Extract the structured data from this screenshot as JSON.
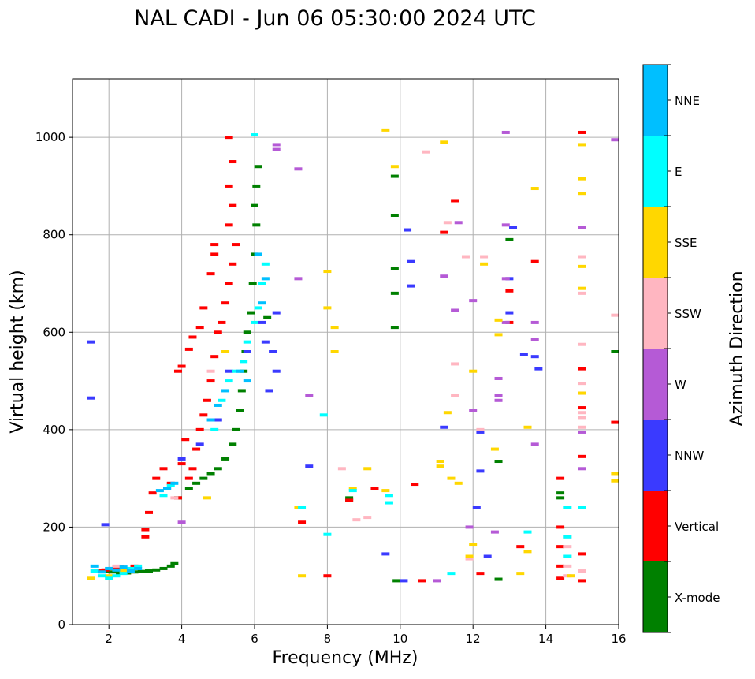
{
  "chart_data": {
    "type": "scatter",
    "title": "NAL CADI - Jun 06 05:30:00 2024 UTC",
    "xlabel": "Frequency (MHz)",
    "ylabel": "Virtual height (km)",
    "xlim": [
      1,
      16
    ],
    "ylim": [
      0,
      1120
    ],
    "xticks": [
      2,
      4,
      6,
      8,
      10,
      12,
      14,
      16
    ],
    "yticks": [
      0,
      200,
      400,
      600,
      800,
      1000
    ],
    "grid": true,
    "colorbar": {
      "label": "Azimuth Direction",
      "categories": [
        "X-mode",
        "Vertical",
        "NNW",
        "W",
        "SSW",
        "SSE",
        "E",
        "NNE"
      ],
      "colors": [
        "#008000",
        "#ff0000",
        "#3a3aff",
        "#b55ad6",
        "#ffb6c1",
        "#ffd700",
        "#00ffff",
        "#00bfff"
      ]
    },
    "series": [
      {
        "name": "X-mode",
        "points": [
          [
            1.9,
            110
          ],
          [
            2.1,
            108
          ],
          [
            2.3,
            106
          ],
          [
            2.5,
            106
          ],
          [
            2.7,
            108
          ],
          [
            2.9,
            109
          ],
          [
            3.1,
            110
          ],
          [
            3.3,
            112
          ],
          [
            3.5,
            115
          ],
          [
            3.7,
            120
          ],
          [
            3.8,
            125
          ],
          [
            3.9,
            260
          ],
          [
            4.2,
            280
          ],
          [
            4.4,
            290
          ],
          [
            4.6,
            300
          ],
          [
            4.8,
            310
          ],
          [
            5.0,
            320
          ],
          [
            5.2,
            340
          ],
          [
            5.4,
            370
          ],
          [
            5.5,
            400
          ],
          [
            5.6,
            440
          ],
          [
            5.65,
            480
          ],
          [
            5.7,
            520
          ],
          [
            5.75,
            560
          ],
          [
            5.8,
            600
          ],
          [
            5.9,
            640
          ],
          [
            5.95,
            700
          ],
          [
            6.0,
            760
          ],
          [
            6.05,
            820
          ],
          [
            6.0,
            860
          ],
          [
            6.05,
            900
          ],
          [
            6.1,
            940
          ],
          [
            6.35,
            630
          ],
          [
            9.85,
            610
          ],
          [
            9.85,
            680
          ],
          [
            9.85,
            730
          ],
          [
            9.85,
            840
          ],
          [
            9.85,
            920
          ],
          [
            8.6,
            255
          ],
          [
            8.6,
            260
          ],
          [
            9.9,
            90
          ],
          [
            12.7,
            93
          ],
          [
            12.7,
            335
          ],
          [
            13.0,
            790
          ],
          [
            14.4,
            260
          ],
          [
            14.4,
            270
          ],
          [
            15.9,
            560
          ]
        ]
      },
      {
        "name": "Vertical",
        "points": [
          [
            1.7,
            110
          ],
          [
            1.9,
            112
          ],
          [
            2.1,
            115
          ],
          [
            2.3,
            118
          ],
          [
            2.5,
            110
          ],
          [
            2.7,
            120
          ],
          [
            3.0,
            180
          ],
          [
            3.1,
            230
          ],
          [
            3.2,
            270
          ],
          [
            3.3,
            300
          ],
          [
            3.5,
            320
          ],
          [
            3.7,
            290
          ],
          [
            3.9,
            260
          ],
          [
            4.0,
            330
          ],
          [
            4.1,
            380
          ],
          [
            4.2,
            300
          ],
          [
            4.3,
            320
          ],
          [
            4.4,
            360
          ],
          [
            4.5,
            400
          ],
          [
            4.6,
            430
          ],
          [
            4.7,
            460
          ],
          [
            4.8,
            500
          ],
          [
            4.9,
            550
          ],
          [
            5.0,
            600
          ],
          [
            5.1,
            620
          ],
          [
            5.2,
            660
          ],
          [
            5.3,
            700
          ],
          [
            5.4,
            740
          ],
          [
            5.5,
            780
          ],
          [
            5.3,
            820
          ],
          [
            5.4,
            860
          ],
          [
            5.3,
            900
          ],
          [
            5.4,
            950
          ],
          [
            5.3,
            1000
          ],
          [
            4.2,
            565
          ],
          [
            4.3,
            590
          ],
          [
            4.5,
            610
          ],
          [
            4.6,
            650
          ],
          [
            4.8,
            720
          ],
          [
            4.9,
            760
          ],
          [
            4.9,
            780
          ],
          [
            3.9,
            520
          ],
          [
            4.0,
            530
          ],
          [
            3.0,
            195
          ],
          [
            7.3,
            210
          ],
          [
            8.0,
            100
          ],
          [
            8.6,
            255
          ],
          [
            9.3,
            280
          ],
          [
            10.4,
            288
          ],
          [
            10.6,
            90
          ],
          [
            11.2,
            805
          ],
          [
            11.5,
            870
          ],
          [
            12.2,
            105
          ],
          [
            13.0,
            620
          ],
          [
            13.0,
            685
          ],
          [
            13.3,
            160
          ],
          [
            13.7,
            745
          ],
          [
            14.4,
            300
          ],
          [
            14.4,
            200
          ],
          [
            14.4,
            160
          ],
          [
            14.4,
            120
          ],
          [
            14.4,
            95
          ],
          [
            15.0,
            90
          ],
          [
            15.0,
            145
          ],
          [
            15.0,
            345
          ],
          [
            15.0,
            445
          ],
          [
            15.0,
            475
          ],
          [
            15.0,
            525
          ],
          [
            15.0,
            1010
          ],
          [
            15.9,
            415
          ]
        ]
      },
      {
        "name": "NNW",
        "points": [
          [
            1.5,
            580
          ],
          [
            1.5,
            465
          ],
          [
            1.9,
            205
          ],
          [
            3.6,
            280
          ],
          [
            4.0,
            340
          ],
          [
            4.5,
            370
          ],
          [
            5.0,
            420
          ],
          [
            5.3,
            520
          ],
          [
            5.8,
            560
          ],
          [
            6.2,
            620
          ],
          [
            6.3,
            580
          ],
          [
            6.5,
            560
          ],
          [
            6.6,
            520
          ],
          [
            6.4,
            480
          ],
          [
            6.6,
            640
          ],
          [
            7.5,
            325
          ],
          [
            9.6,
            145
          ],
          [
            10.1,
            90
          ],
          [
            10.3,
            695
          ],
          [
            10.3,
            745
          ],
          [
            10.2,
            810
          ],
          [
            11.2,
            405
          ],
          [
            12.1,
            240
          ],
          [
            12.2,
            315
          ],
          [
            12.2,
            395
          ],
          [
            12.4,
            140
          ],
          [
            13.0,
            640
          ],
          [
            13.0,
            710
          ],
          [
            13.1,
            815
          ],
          [
            13.4,
            555
          ],
          [
            13.7,
            550
          ],
          [
            13.8,
            525
          ]
        ]
      },
      {
        "name": "W",
        "points": [
          [
            4.0,
            210
          ],
          [
            6.6,
            985
          ],
          [
            6.6,
            975
          ],
          [
            7.2,
            935
          ],
          [
            7.5,
            470
          ],
          [
            7.2,
            710
          ],
          [
            11.0,
            90
          ],
          [
            11.2,
            715
          ],
          [
            11.5,
            645
          ],
          [
            11.6,
            825
          ],
          [
            11.9,
            200
          ],
          [
            12.0,
            440
          ],
          [
            12.0,
            665
          ],
          [
            12.6,
            190
          ],
          [
            12.7,
            460
          ],
          [
            12.7,
            470
          ],
          [
            12.7,
            505
          ],
          [
            12.9,
            620
          ],
          [
            12.9,
            710
          ],
          [
            12.9,
            820
          ],
          [
            12.9,
            1010
          ],
          [
            13.7,
            370
          ],
          [
            13.7,
            585
          ],
          [
            13.7,
            620
          ],
          [
            15.0,
            320
          ],
          [
            15.0,
            395
          ],
          [
            15.0,
            815
          ],
          [
            15.9,
            995
          ]
        ]
      },
      {
        "name": "SSW",
        "points": [
          [
            2.2,
            120
          ],
          [
            3.8,
            260
          ],
          [
            4.8,
            520
          ],
          [
            8.4,
            320
          ],
          [
            8.8,
            215
          ],
          [
            9.1,
            220
          ],
          [
            10.7,
            970
          ],
          [
            11.3,
            825
          ],
          [
            11.5,
            535
          ],
          [
            11.5,
            470
          ],
          [
            11.8,
            755
          ],
          [
            11.9,
            135
          ],
          [
            12.2,
            400
          ],
          [
            12.3,
            755
          ],
          [
            14.6,
            180
          ],
          [
            14.6,
            160
          ],
          [
            14.6,
            140
          ],
          [
            14.6,
            120
          ],
          [
            14.6,
            100
          ],
          [
            15.0,
            680
          ],
          [
            15.0,
            575
          ],
          [
            15.0,
            405
          ],
          [
            15.0,
            425
          ],
          [
            15.0,
            435
          ],
          [
            15.0,
            755
          ],
          [
            15.0,
            495
          ],
          [
            15.0,
            110
          ],
          [
            15.9,
            635
          ]
        ]
      },
      {
        "name": "SSE",
        "points": [
          [
            1.5,
            95
          ],
          [
            2.0,
            100
          ],
          [
            2.4,
            110
          ],
          [
            4.7,
            260
          ],
          [
            5.2,
            560
          ],
          [
            7.2,
            240
          ],
          [
            7.3,
            100
          ],
          [
            8.0,
            725
          ],
          [
            8.0,
            650
          ],
          [
            8.2,
            610
          ],
          [
            8.2,
            560
          ],
          [
            8.7,
            280
          ],
          [
            9.1,
            320
          ],
          [
            9.6,
            1015
          ],
          [
            9.6,
            275
          ],
          [
            9.85,
            940
          ],
          [
            11.1,
            335
          ],
          [
            11.1,
            325
          ],
          [
            11.2,
            990
          ],
          [
            11.3,
            435
          ],
          [
            11.4,
            300
          ],
          [
            11.6,
            290
          ],
          [
            11.9,
            140
          ],
          [
            12.0,
            165
          ],
          [
            12.0,
            520
          ],
          [
            12.3,
            740
          ],
          [
            12.6,
            360
          ],
          [
            12.7,
            595
          ],
          [
            12.7,
            625
          ],
          [
            13.3,
            105
          ],
          [
            13.5,
            405
          ],
          [
            13.5,
            150
          ],
          [
            13.7,
            895
          ],
          [
            14.7,
            100
          ],
          [
            15.0,
            690
          ],
          [
            15.0,
            735
          ],
          [
            15.0,
            885
          ],
          [
            15.0,
            915
          ],
          [
            15.0,
            985
          ],
          [
            15.0,
            475
          ],
          [
            15.9,
            310
          ],
          [
            15.9,
            295
          ]
        ]
      },
      {
        "name": "E",
        "points": [
          [
            1.6,
            110
          ],
          [
            1.8,
            100
          ],
          [
            2.0,
            95
          ],
          [
            2.2,
            100
          ],
          [
            2.4,
            105
          ],
          [
            2.6,
            115
          ],
          [
            2.8,
            120
          ],
          [
            3.5,
            265
          ],
          [
            3.7,
            285
          ],
          [
            4.9,
            400
          ],
          [
            5.1,
            460
          ],
          [
            5.3,
            500
          ],
          [
            5.5,
            520
          ],
          [
            5.7,
            540
          ],
          [
            5.8,
            580
          ],
          [
            6.0,
            620
          ],
          [
            6.1,
            650
          ],
          [
            6.2,
            700
          ],
          [
            6.3,
            740
          ],
          [
            6.0,
            1005
          ],
          [
            7.3,
            240
          ],
          [
            7.9,
            430
          ],
          [
            8.0,
            185
          ],
          [
            8.7,
            275
          ],
          [
            9.7,
            250
          ],
          [
            9.7,
            265
          ],
          [
            11.4,
            105
          ],
          [
            13.5,
            190
          ],
          [
            14.6,
            140
          ],
          [
            14.6,
            180
          ],
          [
            14.6,
            240
          ],
          [
            15.0,
            240
          ]
        ]
      },
      {
        "name": "NNE",
        "points": [
          [
            1.6,
            120
          ],
          [
            1.8,
            108
          ],
          [
            2.0,
            115
          ],
          [
            2.2,
            112
          ],
          [
            2.4,
            118
          ],
          [
            2.6,
            110
          ],
          [
            2.8,
            115
          ],
          [
            3.4,
            275
          ],
          [
            3.6,
            280
          ],
          [
            3.8,
            290
          ],
          [
            4.8,
            420
          ],
          [
            5.0,
            450
          ],
          [
            5.2,
            480
          ],
          [
            5.6,
            520
          ],
          [
            5.8,
            500
          ],
          [
            6.2,
            660
          ],
          [
            6.3,
            710
          ],
          [
            6.1,
            760
          ]
        ]
      }
    ]
  }
}
